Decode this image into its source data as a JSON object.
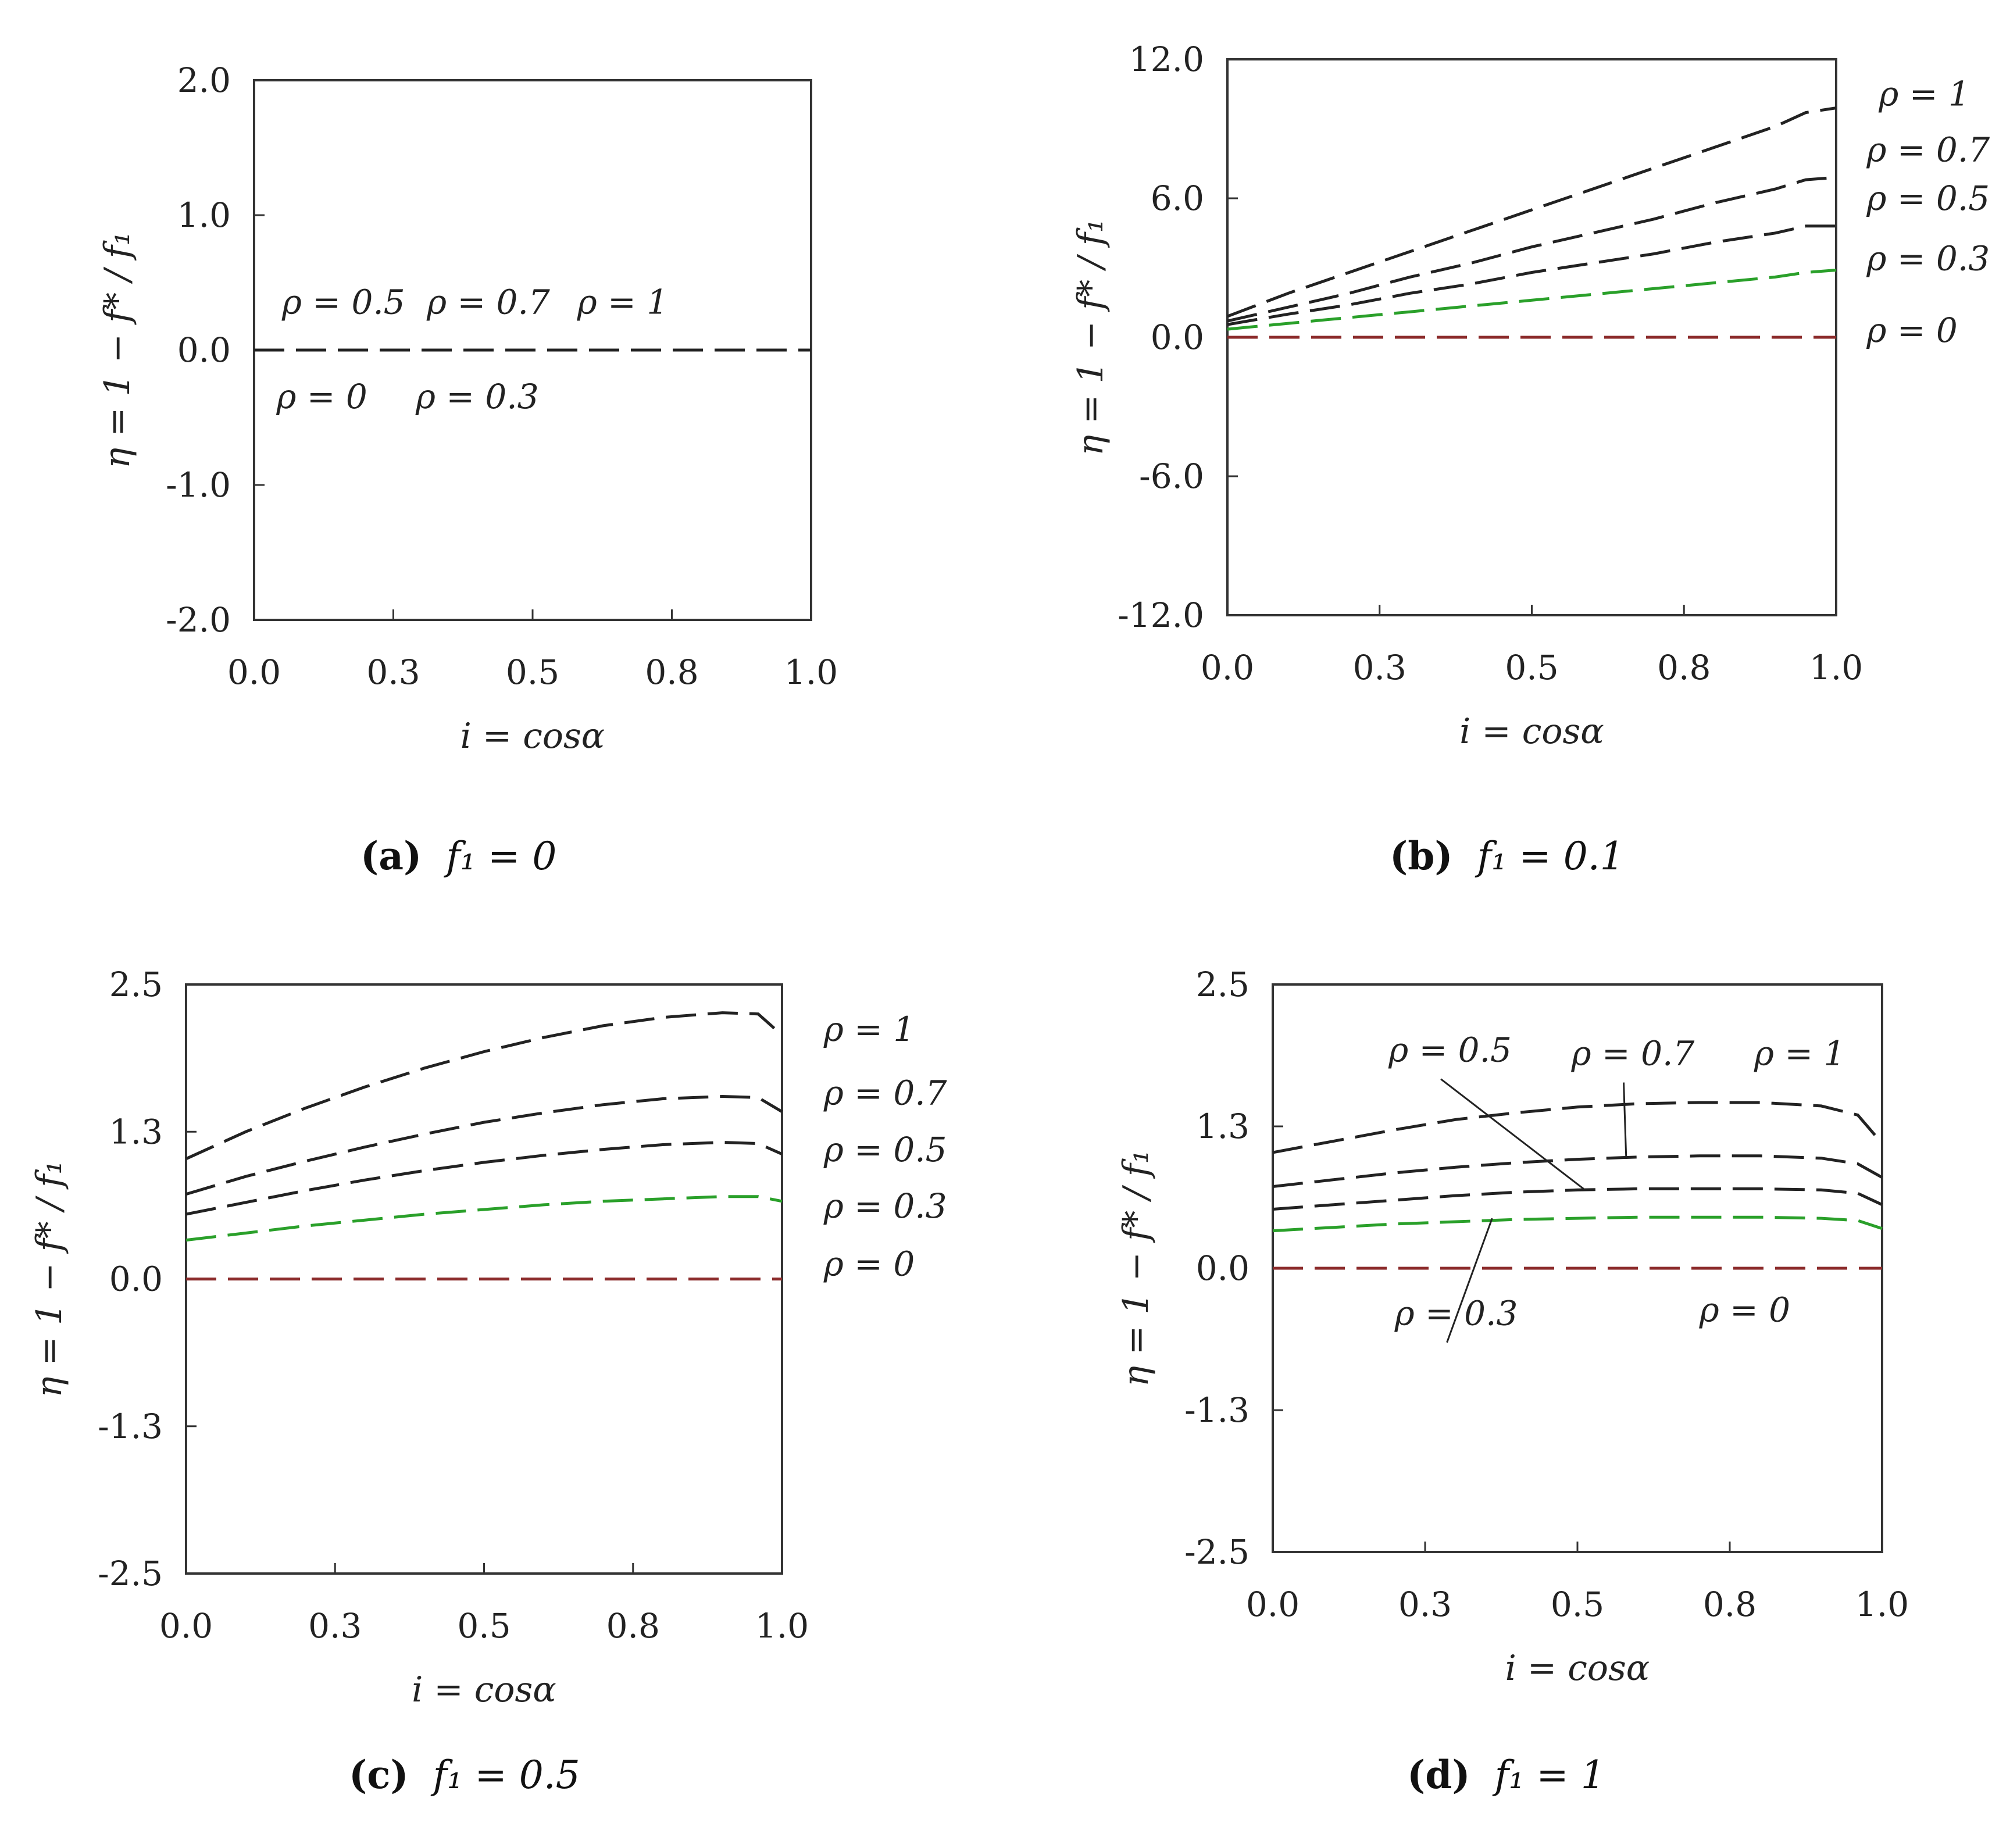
{
  "chart_data": [
    {
      "type": "line",
      "panel": "a",
      "caption": {
        "letter": "(a)",
        "rest": "  f₁ = 0"
      },
      "xlabel": "i = cosα",
      "ylabel": "η = 1 − f* / f₁",
      "xlim": [
        0,
        1
      ],
      "ylim": [
        -2,
        2
      ],
      "xticks": [
        0,
        0.25,
        0.5,
        0.75,
        1
      ],
      "xtick_labels": [
        "0.0",
        "0.3",
        "0.5",
        "0.8",
        "1.0"
      ],
      "yticks": [
        -2,
        -1,
        0,
        1,
        2
      ],
      "ytick_labels": [
        "-2.0",
        "-1.0",
        "0.0",
        "1.0",
        "2.0"
      ],
      "x": [
        0,
        1
      ],
      "series": [
        {
          "name": "ρ = 0",
          "color": "#222222",
          "values": [
            0,
            0
          ]
        }
      ],
      "annotations": [
        {
          "text": "ρ = 0.5",
          "x": 0.05,
          "y": 0.27
        },
        {
          "text": "ρ = 0.7",
          "x": 0.31,
          "y": 0.27
        },
        {
          "text": "ρ = 1",
          "x": 0.58,
          "y": 0.27
        },
        {
          "text": "ρ = 0",
          "x": 0.04,
          "y": -0.43
        },
        {
          "text": "ρ = 0.3",
          "x": 0.29,
          "y": -0.43
        }
      ]
    },
    {
      "type": "line",
      "panel": "b",
      "caption": {
        "letter": "(b)",
        "rest": "  f₁ = 0.1"
      },
      "xlabel": "i = cosα",
      "ylabel": "η = 1 − f* / f₁",
      "xlim": [
        0,
        1
      ],
      "ylim": [
        -12,
        12
      ],
      "xticks": [
        0,
        0.25,
        0.5,
        0.75,
        1
      ],
      "xtick_labels": [
        "0.0",
        "0.3",
        "0.5",
        "0.8",
        "1.0"
      ],
      "yticks": [
        -12,
        -6,
        0,
        6,
        12
      ],
      "ytick_labels": [
        "-12.0",
        "-6.0",
        "0.0",
        "6.0",
        "12.0"
      ],
      "x": [
        0,
        0.1,
        0.2,
        0.3,
        0.4,
        0.5,
        0.6,
        0.7,
        0.8,
        0.9,
        0.95,
        1
      ],
      "series": [
        {
          "name": "ρ = 1",
          "color": "#222222",
          "values": [
            0.9,
            1.9,
            2.8,
            3.7,
            4.6,
            5.5,
            6.4,
            7.3,
            8.2,
            9.1,
            9.7,
            9.9
          ]
        },
        {
          "name": "ρ = 0.7",
          "color": "#222222",
          "values": [
            0.7,
            1.3,
            1.9,
            2.6,
            3.2,
            3.9,
            4.5,
            5.1,
            5.8,
            6.4,
            6.8,
            6.9
          ]
        },
        {
          "name": "ρ = 0.5",
          "color": "#222222",
          "values": [
            0.55,
            1.0,
            1.4,
            1.9,
            2.3,
            2.8,
            3.2,
            3.6,
            4.1,
            4.5,
            4.8,
            4.8
          ]
        },
        {
          "name": "ρ = 0.3",
          "color": "#2aa02a",
          "values": [
            0.35,
            0.6,
            0.85,
            1.1,
            1.35,
            1.6,
            1.85,
            2.1,
            2.35,
            2.6,
            2.8,
            2.9
          ]
        },
        {
          "name": "ρ = 0",
          "color": "#8b2a2a",
          "values": [
            0,
            0,
            0,
            0,
            0,
            0,
            0,
            0,
            0,
            0,
            0,
            0
          ]
        }
      ],
      "annotations": [
        {
          "text": "ρ = 1",
          "x": 1.07,
          "y": 10.0
        },
        {
          "text": "ρ = 0.7",
          "x": 1.05,
          "y": 7.6
        },
        {
          "text": "ρ = 0.5",
          "x": 1.05,
          "y": 5.5
        },
        {
          "text": "ρ = 0.3",
          "x": 1.05,
          "y": 2.9
        },
        {
          "text": "ρ = 0",
          "x": 1.05,
          "y": -0.2
        }
      ]
    },
    {
      "type": "line",
      "panel": "c",
      "caption": {
        "letter": "(c)",
        "rest": "  f₁ = 0.5"
      },
      "xlabel": "i = cosα",
      "ylabel": "η = 1 − f* / f₁",
      "xlim": [
        0,
        1
      ],
      "ylim": [
        -2.5,
        2.5
      ],
      "xticks": [
        0,
        0.25,
        0.5,
        0.75,
        1
      ],
      "xtick_labels": [
        "0.0",
        "0.3",
        "0.5",
        "0.8",
        "1.0"
      ],
      "yticks": [
        -2.5,
        -1.25,
        0,
        1.25,
        2.5
      ],
      "ytick_labels": [
        "-2.5",
        "-1.3",
        "0.0",
        "1.3",
        "2.5"
      ],
      "x": [
        0,
        0.1,
        0.2,
        0.3,
        0.4,
        0.5,
        0.6,
        0.7,
        0.8,
        0.9,
        0.96,
        1
      ],
      "series": [
        {
          "name": "ρ = 1",
          "color": "#222222",
          "values": [
            1.02,
            1.25,
            1.45,
            1.63,
            1.79,
            1.93,
            2.05,
            2.15,
            2.22,
            2.26,
            2.25,
            2.07
          ]
        },
        {
          "name": "ρ = 0.7",
          "color": "#222222",
          "values": [
            0.72,
            0.87,
            1.0,
            1.12,
            1.23,
            1.33,
            1.41,
            1.48,
            1.53,
            1.55,
            1.54,
            1.42
          ]
        },
        {
          "name": "ρ = 0.5",
          "color": "#222222",
          "values": [
            0.55,
            0.65,
            0.75,
            0.84,
            0.92,
            0.99,
            1.05,
            1.1,
            1.14,
            1.16,
            1.15,
            1.06
          ]
        },
        {
          "name": "ρ = 0.3",
          "color": "#2aa02a",
          "values": [
            0.33,
            0.39,
            0.45,
            0.5,
            0.55,
            0.59,
            0.63,
            0.66,
            0.68,
            0.7,
            0.7,
            0.66
          ]
        },
        {
          "name": "ρ = 0",
          "color": "#8b2a2a",
          "values": [
            0,
            0,
            0,
            0,
            0,
            0,
            0,
            0,
            0,
            0,
            0,
            0
          ]
        }
      ],
      "annotations": [
        {
          "text": "ρ = 1",
          "x": 1.07,
          "y": 2.02
        },
        {
          "text": "ρ = 0.7",
          "x": 1.07,
          "y": 1.48
        },
        {
          "text": "ρ = 0.5",
          "x": 1.07,
          "y": 1.0
        },
        {
          "text": "ρ = 0.3",
          "x": 1.07,
          "y": 0.52
        },
        {
          "text": "ρ = 0",
          "x": 1.07,
          "y": 0.03
        }
      ]
    },
    {
      "type": "line",
      "panel": "d",
      "caption": {
        "letter": "(d)",
        "rest": "  f₁ = 1"
      },
      "xlabel": "i = cosα",
      "ylabel": "η = 1 − f* / f₁",
      "xlim": [
        0,
        1
      ],
      "ylim": [
        -2.5,
        2.5
      ],
      "xticks": [
        0,
        0.25,
        0.5,
        0.75,
        1
      ],
      "xtick_labels": [
        "0.0",
        "0.3",
        "0.5",
        "0.8",
        "1.0"
      ],
      "yticks": [
        -2.5,
        -1.25,
        0,
        1.25,
        2.5
      ],
      "ytick_labels": [
        "-2.5",
        "-1.3",
        "0.0",
        "1.3",
        "2.5"
      ],
      "x": [
        0,
        0.1,
        0.2,
        0.3,
        0.4,
        0.5,
        0.6,
        0.7,
        0.8,
        0.9,
        0.96,
        1
      ],
      "series": [
        {
          "name": "ρ = 1",
          "color": "#222222",
          "values": [
            1.02,
            1.12,
            1.22,
            1.31,
            1.37,
            1.42,
            1.45,
            1.46,
            1.46,
            1.43,
            1.35,
            1.1
          ]
        },
        {
          "name": "ρ = 0.7",
          "color": "#222222",
          "values": [
            0.72,
            0.78,
            0.84,
            0.89,
            0.93,
            0.96,
            0.98,
            0.99,
            0.99,
            0.97,
            0.92,
            0.8
          ]
        },
        {
          "name": "ρ = 0.5",
          "color": "#222222",
          "values": [
            0.52,
            0.56,
            0.6,
            0.64,
            0.67,
            0.69,
            0.7,
            0.7,
            0.7,
            0.69,
            0.66,
            0.56
          ]
        },
        {
          "name": "ρ = 0.3",
          "color": "#2aa02a",
          "values": [
            0.33,
            0.36,
            0.39,
            0.41,
            0.43,
            0.44,
            0.45,
            0.45,
            0.45,
            0.44,
            0.42,
            0.35
          ]
        },
        {
          "name": "ρ = 0",
          "color": "#8b2a2a",
          "values": [
            0,
            0,
            0,
            0,
            0,
            0,
            0,
            0,
            0,
            0,
            0,
            0
          ]
        }
      ],
      "annotations": [
        {
          "text": "ρ = 0.5",
          "x": 0.19,
          "y": 1.82,
          "pointer": [
            0.51,
            0.7
          ]
        },
        {
          "text": "ρ = 0.7",
          "x": 0.49,
          "y": 1.79,
          "pointer": [
            0.58,
            0.97
          ]
        },
        {
          "text": "ρ = 1",
          "x": 0.79,
          "y": 1.79
        },
        {
          "text": "ρ = 0.3",
          "x": 0.2,
          "y": -0.5,
          "pointer": [
            0.36,
            0.44
          ]
        },
        {
          "text": "ρ = 0",
          "x": 0.7,
          "y": -0.47
        }
      ]
    }
  ]
}
